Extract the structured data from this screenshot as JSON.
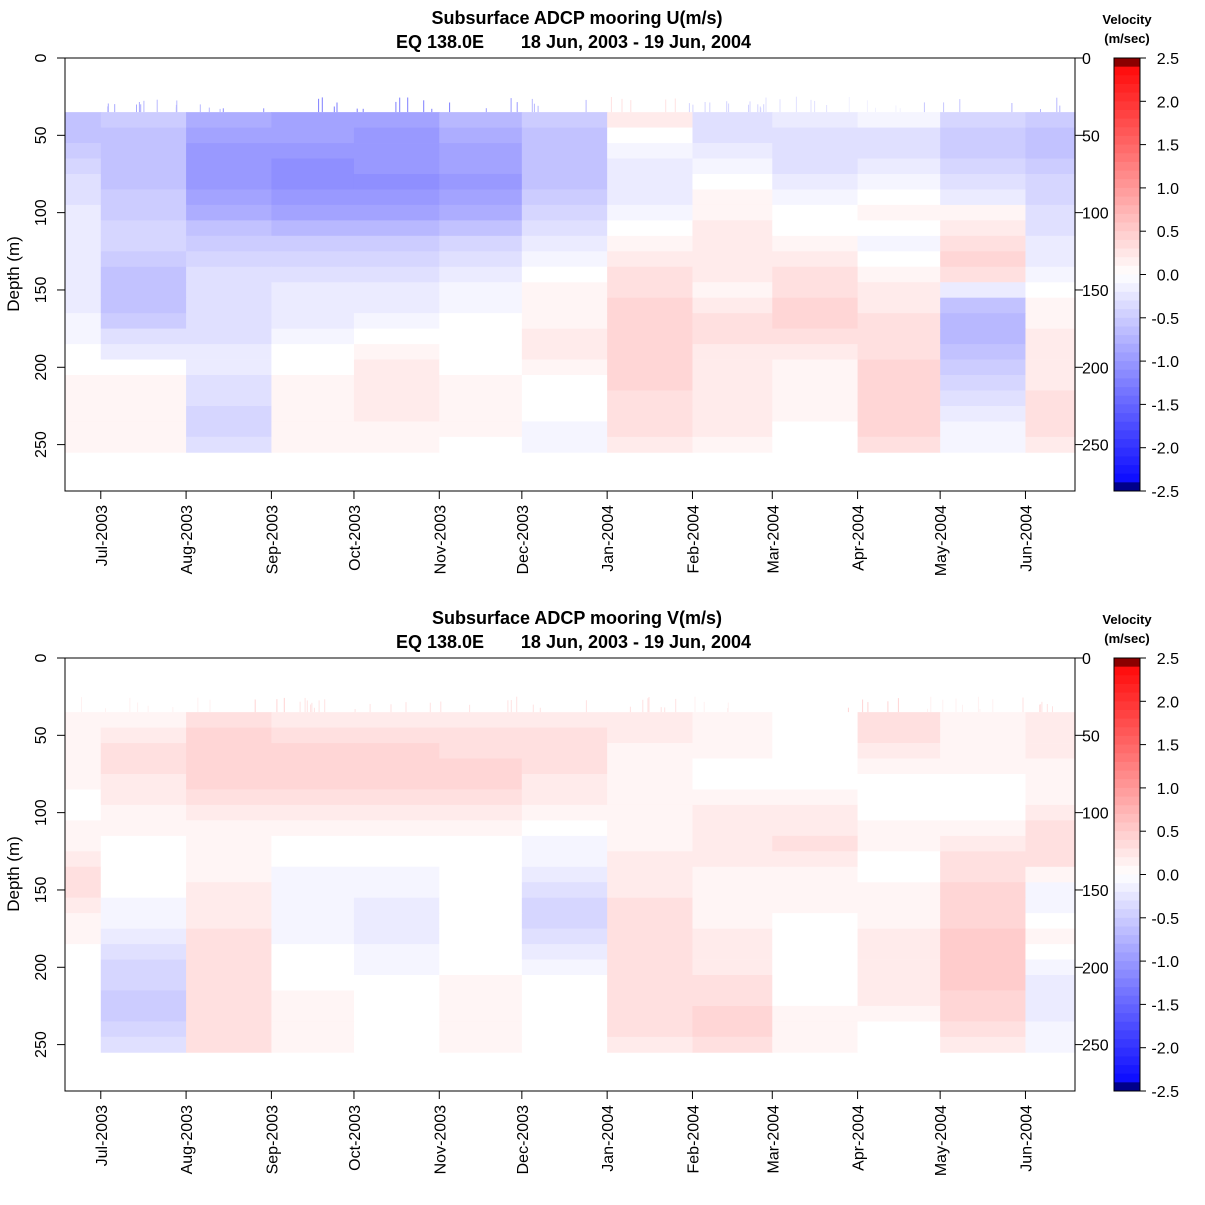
{
  "panels": [
    {
      "title": "Subsurface ADCP mooring U(m/s)",
      "location": "EQ 138.0E",
      "date_range": "18 Jun, 2003 - 19 Jun, 2004",
      "ylabel": "Depth (m)",
      "colorbar_title": [
        "Velocity",
        "(m/sec)"
      ]
    },
    {
      "title": "Subsurface ADCP mooring V(m/s)",
      "location": "EQ 138.0E",
      "date_range": "18 Jun, 2003 - 19 Jun, 2004",
      "ylabel": "Depth (m)",
      "colorbar_title": [
        "Velocity",
        "(m/sec)"
      ]
    }
  ],
  "axes": {
    "depth_ticks": [
      "0",
      "50",
      "100",
      "150",
      "200",
      "250"
    ],
    "month_ticks": [
      "Jul-2003",
      "Aug-2003",
      "Sep-2003",
      "Oct-2003",
      "Nov-2003",
      "Dec-2003",
      "Jan-2004",
      "Feb-2004",
      "Mar-2004",
      "Apr-2004",
      "May-2004",
      "Jun-2004"
    ],
    "colorbar_ticks": [
      "2.5",
      "2.0",
      "1.5",
      "1.0",
      "0.5",
      "0.0",
      "-0.5",
      "-1.0",
      "-1.5",
      "-2.0",
      "-2.5"
    ]
  },
  "colors": {
    "positive": "#ff0000",
    "negative": "#0000ff",
    "zero": "#ffffff",
    "pos_cap": "#8b0000",
    "neg_cap": "#00008b"
  },
  "chart_data": [
    {
      "type": "heatmap",
      "title": "Subsurface ADCP mooring U(m/s)",
      "ylabel": "Depth (m)",
      "y_range": [
        0,
        280
      ],
      "y_reversed": true,
      "x_range": [
        "2003-06-18",
        "2004-06-19"
      ],
      "color_range": [
        -2.5,
        2.5
      ],
      "depths": [
        40,
        50,
        60,
        70,
        80,
        90,
        100,
        110,
        120,
        130,
        140,
        150,
        160,
        170,
        180,
        190,
        200,
        210,
        220,
        230,
        240,
        250
      ],
      "months": [
        "Jun-2003",
        "Jul-2003",
        "Aug-2003",
        "Sep-2003",
        "Oct-2003",
        "Nov-2003",
        "Dec-2003",
        "Jan-2004",
        "Feb-2004",
        "Mar-2004",
        "Apr-2004",
        "May-2004",
        "Jun-2004"
      ],
      "values": [
        [
          -0.6,
          -0.5,
          -0.8,
          -0.9,
          -0.9,
          -0.7,
          -0.5,
          0.2,
          -0.3,
          -0.2,
          -0.1,
          -0.4,
          -0.5
        ],
        [
          -0.6,
          -0.6,
          -0.9,
          -0.9,
          -1.0,
          -0.8,
          -0.6,
          0.0,
          -0.3,
          -0.3,
          -0.3,
          -0.5,
          -0.6
        ],
        [
          -0.5,
          -0.6,
          -1.0,
          -1.0,
          -1.0,
          -0.9,
          -0.6,
          -0.1,
          -0.2,
          -0.3,
          -0.3,
          -0.5,
          -0.6
        ],
        [
          -0.4,
          -0.6,
          -1.0,
          -1.1,
          -1.0,
          -0.9,
          -0.6,
          -0.2,
          -0.1,
          -0.3,
          -0.2,
          -0.4,
          -0.5
        ],
        [
          -0.3,
          -0.6,
          -1.0,
          -1.1,
          -1.1,
          -1.0,
          -0.6,
          -0.2,
          0.0,
          -0.2,
          -0.1,
          -0.3,
          -0.4
        ],
        [
          -0.3,
          -0.5,
          -0.9,
          -1.0,
          -1.0,
          -0.9,
          -0.5,
          -0.2,
          0.1,
          -0.1,
          0.0,
          -0.2,
          -0.4
        ],
        [
          -0.2,
          -0.5,
          -0.8,
          -0.9,
          -0.9,
          -0.8,
          -0.4,
          -0.1,
          0.1,
          0.0,
          0.1,
          0.1,
          -0.3
        ],
        [
          -0.2,
          -0.4,
          -0.6,
          -0.7,
          -0.7,
          -0.6,
          -0.3,
          0.0,
          0.2,
          0.0,
          0.0,
          0.2,
          -0.3
        ],
        [
          -0.2,
          -0.4,
          -0.5,
          -0.5,
          -0.5,
          -0.4,
          -0.2,
          0.1,
          0.2,
          0.1,
          -0.1,
          0.3,
          -0.2
        ],
        [
          -0.2,
          -0.5,
          -0.4,
          -0.4,
          -0.4,
          -0.3,
          -0.1,
          0.2,
          0.2,
          0.2,
          0.0,
          0.4,
          -0.2
        ],
        [
          -0.2,
          -0.6,
          -0.3,
          -0.3,
          -0.3,
          -0.2,
          0.0,
          0.3,
          0.2,
          0.3,
          0.1,
          0.3,
          -0.1
        ],
        [
          -0.2,
          -0.6,
          -0.3,
          -0.2,
          -0.2,
          -0.1,
          0.1,
          0.3,
          0.1,
          0.3,
          0.2,
          -0.2,
          0.0
        ],
        [
          -0.2,
          -0.6,
          -0.3,
          -0.2,
          -0.2,
          -0.1,
          0.1,
          0.4,
          0.2,
          0.4,
          0.2,
          -0.6,
          0.1
        ],
        [
          -0.1,
          -0.5,
          -0.3,
          -0.2,
          -0.1,
          0.0,
          0.1,
          0.4,
          0.3,
          0.4,
          0.3,
          -0.7,
          0.1
        ],
        [
          -0.1,
          -0.3,
          -0.3,
          -0.1,
          0.0,
          0.0,
          0.2,
          0.4,
          0.3,
          0.3,
          0.3,
          -0.7,
          0.2
        ],
        [
          0.0,
          -0.2,
          -0.2,
          0.0,
          0.1,
          0.0,
          0.2,
          0.4,
          0.2,
          0.2,
          0.3,
          -0.6,
          0.2
        ],
        [
          0.0,
          0.0,
          -0.2,
          0.0,
          0.2,
          0.0,
          0.1,
          0.4,
          0.2,
          0.1,
          0.4,
          -0.5,
          0.2
        ],
        [
          0.1,
          0.1,
          -0.3,
          0.1,
          0.2,
          0.1,
          0.0,
          0.4,
          0.2,
          0.1,
          0.4,
          -0.4,
          0.2
        ],
        [
          0.1,
          0.1,
          -0.3,
          0.1,
          0.2,
          0.1,
          0.0,
          0.3,
          0.2,
          0.1,
          0.4,
          -0.3,
          0.3
        ],
        [
          0.1,
          0.1,
          -0.4,
          0.1,
          0.2,
          0.1,
          0.0,
          0.3,
          0.2,
          0.1,
          0.4,
          -0.2,
          0.3
        ],
        [
          0.1,
          0.1,
          -0.4,
          0.1,
          0.1,
          0.1,
          -0.1,
          0.3,
          0.2,
          0.0,
          0.4,
          -0.1,
          0.3
        ],
        [
          0.1,
          0.1,
          -0.3,
          0.1,
          0.1,
          0.0,
          -0.1,
          0.2,
          0.1,
          0.0,
          0.3,
          -0.1,
          0.2
        ]
      ]
    },
    {
      "type": "heatmap",
      "title": "Subsurface ADCP mooring V(m/s)",
      "ylabel": "Depth (m)",
      "y_range": [
        0,
        280
      ],
      "y_reversed": true,
      "x_range": [
        "2003-06-18",
        "2004-06-19"
      ],
      "color_range": [
        -2.5,
        2.5
      ],
      "depths": [
        40,
        50,
        60,
        70,
        80,
        90,
        100,
        110,
        120,
        130,
        140,
        150,
        160,
        170,
        180,
        190,
        200,
        210,
        220,
        230,
        240,
        250
      ],
      "months": [
        "Jun-2003",
        "Jul-2003",
        "Aug-2003",
        "Sep-2003",
        "Oct-2003",
        "Nov-2003",
        "Dec-2003",
        "Jan-2004",
        "Feb-2004",
        "Mar-2004",
        "Apr-2004",
        "May-2004",
        "Jun-2004"
      ],
      "values": [
        [
          0.1,
          0.1,
          0.3,
          0.2,
          0.2,
          0.2,
          0.2,
          0.2,
          0.1,
          0.0,
          0.3,
          0.1,
          0.2
        ],
        [
          0.1,
          0.2,
          0.4,
          0.3,
          0.3,
          0.3,
          0.3,
          0.2,
          0.1,
          0.0,
          0.3,
          0.1,
          0.2
        ],
        [
          0.1,
          0.3,
          0.4,
          0.4,
          0.4,
          0.3,
          0.3,
          0.1,
          0.1,
          0.0,
          0.2,
          0.1,
          0.2
        ],
        [
          0.1,
          0.3,
          0.4,
          0.4,
          0.4,
          0.4,
          0.3,
          0.1,
          0.0,
          0.0,
          0.1,
          0.1,
          0.1
        ],
        [
          0.1,
          0.2,
          0.4,
          0.4,
          0.4,
          0.4,
          0.2,
          0.1,
          0.0,
          0.0,
          0.0,
          0.0,
          0.1
        ],
        [
          0.0,
          0.2,
          0.3,
          0.3,
          0.3,
          0.3,
          0.2,
          0.1,
          0.1,
          0.1,
          0.0,
          0.0,
          0.1
        ],
        [
          0.0,
          0.1,
          0.2,
          0.2,
          0.2,
          0.2,
          0.1,
          0.1,
          0.2,
          0.2,
          0.0,
          0.0,
          0.2
        ],
        [
          0.1,
          0.1,
          0.1,
          0.1,
          0.1,
          0.1,
          0.0,
          0.1,
          0.2,
          0.2,
          0.1,
          0.1,
          0.3
        ],
        [
          0.1,
          0.0,
          0.1,
          0.0,
          0.0,
          0.0,
          -0.1,
          0.1,
          0.2,
          0.3,
          0.1,
          0.2,
          0.3
        ],
        [
          0.2,
          0.0,
          0.1,
          0.0,
          0.0,
          0.0,
          -0.1,
          0.2,
          0.2,
          0.2,
          0.0,
          0.3,
          0.3
        ],
        [
          0.3,
          0.0,
          0.1,
          -0.1,
          -0.1,
          0.0,
          -0.2,
          0.2,
          0.1,
          0.1,
          0.0,
          0.3,
          0.1
        ],
        [
          0.3,
          0.0,
          0.2,
          -0.1,
          -0.1,
          0.0,
          -0.3,
          0.2,
          0.1,
          0.1,
          0.1,
          0.4,
          -0.1
        ],
        [
          0.2,
          -0.1,
          0.2,
          -0.1,
          -0.2,
          0.0,
          -0.4,
          0.3,
          0.1,
          0.1,
          0.1,
          0.4,
          -0.1
        ],
        [
          0.1,
          -0.1,
          0.2,
          -0.1,
          -0.2,
          0.0,
          -0.4,
          0.3,
          0.1,
          0.0,
          0.1,
          0.4,
          0.0
        ],
        [
          0.1,
          -0.2,
          0.3,
          -0.1,
          -0.2,
          0.0,
          -0.3,
          0.3,
          0.2,
          0.0,
          0.2,
          0.5,
          0.1
        ],
        [
          0.0,
          -0.3,
          0.3,
          0.0,
          -0.1,
          0.0,
          -0.2,
          0.3,
          0.2,
          0.0,
          0.2,
          0.5,
          0.0
        ],
        [
          0.0,
          -0.4,
          0.3,
          0.0,
          -0.1,
          0.0,
          -0.1,
          0.3,
          0.2,
          0.0,
          0.2,
          0.5,
          -0.1
        ],
        [
          0.0,
          -0.4,
          0.3,
          0.0,
          0.0,
          0.1,
          0.0,
          0.3,
          0.3,
          0.0,
          0.2,
          0.5,
          -0.2
        ],
        [
          0.0,
          -0.5,
          0.3,
          0.1,
          0.0,
          0.1,
          0.0,
          0.3,
          0.3,
          0.0,
          0.2,
          0.4,
          -0.2
        ],
        [
          0.0,
          -0.5,
          0.3,
          0.1,
          0.0,
          0.1,
          0.0,
          0.3,
          0.4,
          0.1,
          0.1,
          0.4,
          -0.2
        ],
        [
          0.0,
          -0.4,
          0.3,
          0.1,
          0.0,
          0.1,
          0.0,
          0.3,
          0.4,
          0.1,
          0.0,
          0.3,
          -0.1
        ],
        [
          0.0,
          -0.3,
          0.3,
          0.1,
          0.0,
          0.1,
          0.0,
          0.2,
          0.3,
          0.1,
          0.0,
          0.2,
          -0.1
        ]
      ]
    }
  ]
}
